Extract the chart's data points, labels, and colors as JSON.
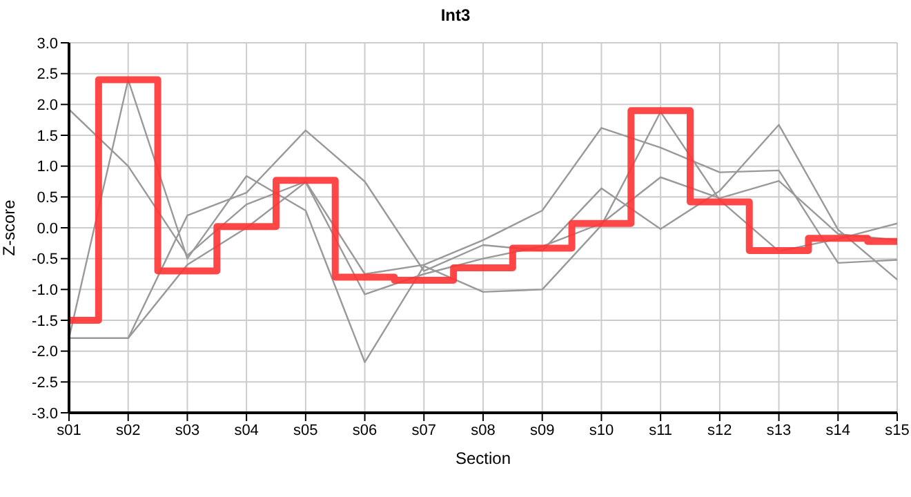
{
  "chart_data": {
    "type": "line",
    "title": "Int3",
    "xlabel": "Section",
    "ylabel": "Z-score",
    "categories": [
      "s01",
      "s02",
      "s03",
      "s04",
      "s05",
      "s06",
      "s07",
      "s08",
      "s09",
      "s10",
      "s11",
      "s12",
      "s13",
      "s14",
      "s15"
    ],
    "series": [
      {
        "color": "#999999",
        "values": [
          1.92,
          1.0,
          -0.45,
          0.38,
          0.75,
          -0.75,
          -0.6,
          -0.2,
          0.28,
          1.62,
          1.3,
          0.9,
          0.93,
          -0.57,
          -0.52
        ]
      },
      {
        "color": "#999999",
        "values": [
          -1.79,
          2.4,
          -0.5,
          0.84,
          0.28,
          -2.18,
          -0.62,
          -1.04,
          -1.0,
          0.04,
          1.88,
          0.45,
          -0.38,
          -0.18,
          0.07
        ]
      },
      {
        "color": "#999999",
        "values": [
          -1.79,
          -1.79,
          0.2,
          0.57,
          1.58,
          0.75,
          -0.7,
          -0.28,
          -0.37,
          0.64,
          -0.02,
          0.6,
          1.67,
          -0.03,
          -0.84
        ]
      },
      {
        "color": "#999999",
        "values": [
          -1.79,
          -1.79,
          -0.6,
          0.0,
          0.74,
          -1.08,
          -0.75,
          -0.5,
          -0.3,
          0.07,
          0.82,
          0.48,
          0.76,
          -0.1,
          -0.2
        ]
      },
      {
        "type": "step",
        "color": "#ff3333",
        "values": [
          -1.5,
          2.4,
          -0.7,
          0.02,
          0.77,
          -0.8,
          -0.85,
          -0.65,
          -0.33,
          0.07,
          1.9,
          0.42,
          -0.37,
          -0.17,
          -0.22
        ]
      }
    ],
    "ylim": [
      -3,
      3
    ],
    "yticks": [
      {
        "value": -3,
        "label": "-3.0"
      },
      -2.5,
      {
        "value": -2,
        "label": "-2.0"
      },
      -1.5,
      {
        "value": -1,
        "label": "-1.0"
      },
      -0.5,
      {
        "value": 0,
        "label": "0.0"
      },
      0.5,
      {
        "value": 1,
        "label": "1.0"
      },
      1.5,
      {
        "value": 2,
        "label": "2.0"
      },
      2.5,
      {
        "value": 3,
        "label": "3.0"
      }
    ],
    "grid": true,
    "legend": false,
    "marker": "none",
    "line_style": "solid"
  }
}
